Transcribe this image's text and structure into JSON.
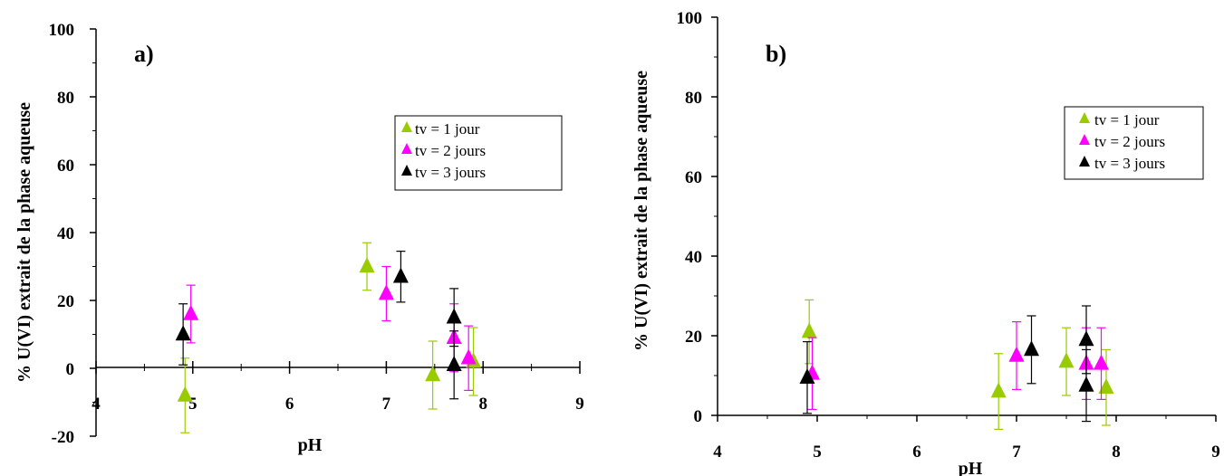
{
  "chart_data": [
    {
      "type": "scatter",
      "panel_label": "a)",
      "xlabel": "pH",
      "ylabel": "% U(VI) extrait de la phase aqueuse",
      "xlim": [
        4,
        9
      ],
      "ylim": [
        -20,
        100
      ],
      "xticks": [
        "4",
        "5",
        "6",
        "7",
        "8",
        "9"
      ],
      "yticks": [
        "-20",
        "0",
        "20",
        "40",
        "60",
        "80",
        "100"
      ],
      "legend_position": "right",
      "series": [
        {
          "name": "tv = 1 jour",
          "color": "#99cc00",
          "points": [
            {
              "x": 4.92,
              "y": -8,
              "err": 11
            },
            {
              "x": 6.8,
              "y": 30,
              "err": 7
            },
            {
              "x": 7.48,
              "y": -2,
              "err": 10
            },
            {
              "x": 7.9,
              "y": 2,
              "err": 10
            }
          ]
        },
        {
          "name": "tv = 2 jours",
          "color": "#ff00ff",
          "points": [
            {
              "x": 4.98,
              "y": 16,
              "err": 8.5
            },
            {
              "x": 7.0,
              "y": 22,
              "err": 8
            },
            {
              "x": 7.7,
              "y": 9,
              "err": 10
            },
            {
              "x": 7.85,
              "y": 3,
              "err": 9.5
            }
          ]
        },
        {
          "name": "tv = 3 jours",
          "color": "#000000",
          "points": [
            {
              "x": 4.9,
              "y": 10,
              "err": 9
            },
            {
              "x": 7.15,
              "y": 27,
              "err": 7.5
            },
            {
              "x": 7.7,
              "y": 15,
              "err": 8.5
            },
            {
              "x": 7.7,
              "y": 1,
              "err": 10
            }
          ]
        }
      ]
    },
    {
      "type": "scatter",
      "panel_label": "b)",
      "xlabel": "pH",
      "ylabel": "% U(VI) extrait de la phase aqueuse",
      "xlim": [
        4,
        9
      ],
      "ylim": [
        0,
        100
      ],
      "xticks": [
        "4",
        "5",
        "6",
        "7",
        "8",
        "9"
      ],
      "yticks": [
        "0",
        "20",
        "40",
        "60",
        "80",
        "100"
      ],
      "legend_position": "top-right",
      "series": [
        {
          "name": "tv = 1 jour",
          "color": "#99cc00",
          "points": [
            {
              "x": 4.92,
              "y": 21,
              "err": 8
            },
            {
              "x": 6.82,
              "y": 6,
              "err": 9.5
            },
            {
              "x": 7.5,
              "y": 13.5,
              "err": 8.5
            },
            {
              "x": 7.9,
              "y": 7,
              "err": 9.5
            }
          ]
        },
        {
          "name": "tv = 2 jours",
          "color": "#ff00ff",
          "points": [
            {
              "x": 4.95,
              "y": 10.5,
              "err": 9
            },
            {
              "x": 7.0,
              "y": 15,
              "err": 8.5
            },
            {
              "x": 7.7,
              "y": 13,
              "err": 9
            },
            {
              "x": 7.85,
              "y": 13,
              "err": 9
            }
          ]
        },
        {
          "name": "tv = 3 jours",
          "color": "#000000",
          "points": [
            {
              "x": 4.9,
              "y": 9.5,
              "err": 9
            },
            {
              "x": 7.15,
              "y": 16.5,
              "err": 8.5
            },
            {
              "x": 7.7,
              "y": 19,
              "err": 8.5
            },
            {
              "x": 7.7,
              "y": 7.5,
              "err": 9
            }
          ]
        }
      ]
    }
  ]
}
